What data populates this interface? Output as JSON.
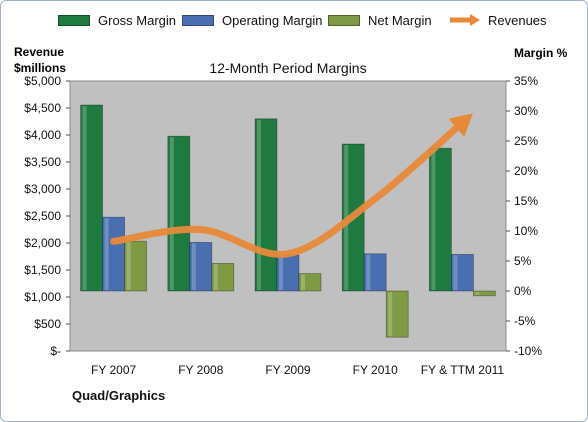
{
  "chart_data": {
    "type": "bar",
    "title": "12-Month Period Margins",
    "categories": [
      "FY 2007",
      "FY 2008",
      "FY 2009",
      "FY 2010",
      "FY & TTM 2011"
    ],
    "series": [
      {
        "name": "Gross Margin",
        "axis": "right",
        "type": "bar",
        "color": "#1e7a3f",
        "values": [
          31.0,
          25.8,
          28.7,
          24.5,
          23.8
        ]
      },
      {
        "name": "Operating Margin",
        "axis": "right",
        "type": "bar",
        "color": "#4a6fb0",
        "values": [
          12.3,
          8.1,
          6.0,
          6.2,
          6.1
        ]
      },
      {
        "name": "Net Margin",
        "axis": "right",
        "type": "bar",
        "color": "#7f9a44",
        "values": [
          8.3,
          4.6,
          2.9,
          -7.7,
          -0.8
        ]
      },
      {
        "name": "Revenues",
        "axis": "left",
        "type": "line",
        "color": "#e8893a",
        "values": [
          2030,
          2250,
          1800,
          2820,
          4230
        ]
      }
    ],
    "ylabel_left": "Revenue $millions",
    "ylabel_right": "Margin %",
    "ylim_left": [
      0,
      5000
    ],
    "yticks_left": [
      "$-",
      "$500",
      "$1,000",
      "$1,500",
      "$2,000",
      "$2,500",
      "$3,000",
      "$3,500",
      "$4,000",
      "$4,500",
      "$5,000"
    ],
    "ylim_right": [
      -10,
      35
    ],
    "yticks_right": [
      "-10%",
      "-5%",
      "0%",
      "5%",
      "10%",
      "15%",
      "20%",
      "25%",
      "30%",
      "35%"
    ],
    "legend_position": "top",
    "grid": false,
    "plot_background": "#c0c0c0",
    "note": "Quad/Graphics"
  }
}
